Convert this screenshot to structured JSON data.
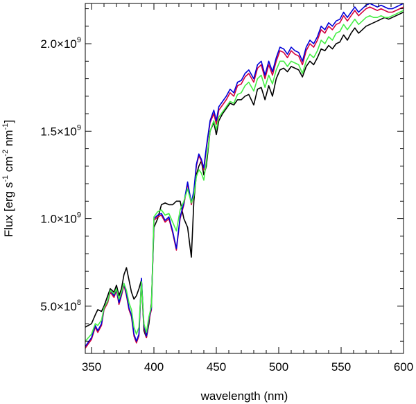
{
  "chart_data": {
    "type": "line",
    "title": "",
    "xlabel": "wavelength (nm)",
    "ylabel": {
      "parts": [
        {
          "t": "Flux [erg s"
        },
        {
          "t": "-1",
          "sup": true
        },
        {
          "t": " cm"
        },
        {
          "t": "-2",
          "sup": true
        },
        {
          "t": " nm"
        },
        {
          "t": "-1",
          "sup": true
        },
        {
          "t": "]"
        }
      ]
    },
    "xlim": [
      345,
      600
    ],
    "ylim": [
      230000000,
      2230000000
    ],
    "xticks": [
      350,
      400,
      450,
      500,
      550,
      600
    ],
    "xtick_labels": [
      "350",
      "400",
      "450",
      "500",
      "550",
      "600"
    ],
    "yticks": [
      500000000,
      1000000000,
      1500000000,
      2000000000
    ],
    "ytick_labels": [
      {
        "mant": "5.0",
        "exp": "8"
      },
      {
        "mant": "1.0",
        "exp": "9"
      },
      {
        "mant": "1.5",
        "exp": "9"
      },
      {
        "mant": "2.0",
        "exp": "9"
      }
    ],
    "x_minor_step": 10,
    "y_minor_step": 100000000,
    "grid": false,
    "legend": false,
    "series": [
      {
        "color": "#000000",
        "x": [
          345,
          350,
          353,
          355,
          358,
          360,
          363,
          365,
          368,
          370,
          372,
          374,
          376,
          378,
          380,
          382,
          384,
          386,
          388,
          390,
          392,
          394,
          396,
          398,
          400,
          403,
          406,
          409,
          412,
          415,
          418,
          421,
          424,
          427,
          430,
          432,
          434,
          436,
          438,
          440,
          442,
          445,
          448,
          450,
          452,
          455,
          458,
          461,
          464,
          467,
          470,
          473,
          476,
          480,
          483,
          486,
          489,
          492,
          495,
          498,
          501,
          504,
          507,
          510,
          513,
          516,
          519,
          522,
          525,
          528,
          531,
          534,
          537,
          540,
          543,
          546,
          549,
          552,
          555,
          558,
          561,
          564,
          567,
          570,
          573,
          576,
          579,
          582,
          585,
          588,
          591,
          594,
          597,
          600
        ],
        "y": [
          380000000,
          400000000,
          450000000,
          480000000,
          470000000,
          500000000,
          560000000,
          600000000,
          580000000,
          620000000,
          560000000,
          600000000,
          680000000,
          720000000,
          650000000,
          580000000,
          540000000,
          560000000,
          600000000,
          650000000,
          360000000,
          320000000,
          400000000,
          520000000,
          950000000,
          1000000000,
          1080000000,
          1090000000,
          1080000000,
          1080000000,
          1100000000,
          1100000000,
          1000000000,
          950000000,
          780000000,
          1100000000,
          1250000000,
          1300000000,
          1330000000,
          1250000000,
          1300000000,
          1500000000,
          1550000000,
          1480000000,
          1560000000,
          1600000000,
          1630000000,
          1660000000,
          1650000000,
          1680000000,
          1680000000,
          1700000000,
          1710000000,
          1650000000,
          1740000000,
          1750000000,
          1680000000,
          1760000000,
          1700000000,
          1800000000,
          1850000000,
          1860000000,
          1840000000,
          1870000000,
          1860000000,
          1850000000,
          1810000000,
          1870000000,
          1900000000,
          1880000000,
          1920000000,
          1970000000,
          1960000000,
          1990000000,
          1970000000,
          2000000000,
          2010000000,
          2050000000,
          2020000000,
          2060000000,
          2090000000,
          2060000000,
          2080000000,
          2100000000,
          2110000000,
          2120000000,
          2130000000,
          2140000000,
          2150000000,
          2140000000,
          2150000000,
          2160000000,
          2170000000,
          2180000000
        ]
      },
      {
        "color": "#d3003d",
        "x": [
          345,
          350,
          353,
          355,
          358,
          360,
          363,
          365,
          368,
          370,
          372,
          374,
          376,
          378,
          380,
          382,
          384,
          386,
          388,
          390,
          392,
          394,
          396,
          398,
          400,
          403,
          406,
          409,
          412,
          415,
          418,
          421,
          424,
          427,
          430,
          432,
          434,
          436,
          438,
          440,
          442,
          445,
          448,
          450,
          452,
          455,
          458,
          461,
          464,
          467,
          470,
          473,
          476,
          480,
          483,
          486,
          489,
          492,
          495,
          498,
          501,
          504,
          507,
          510,
          513,
          516,
          519,
          522,
          525,
          528,
          531,
          534,
          537,
          540,
          543,
          546,
          549,
          552,
          555,
          558,
          561,
          564,
          567,
          570,
          573,
          576,
          579,
          582,
          585,
          588,
          591,
          594,
          597,
          600
        ],
        "y": [
          260000000,
          310000000,
          380000000,
          350000000,
          390000000,
          480000000,
          520000000,
          580000000,
          550000000,
          590000000,
          510000000,
          560000000,
          620000000,
          560000000,
          480000000,
          440000000,
          330000000,
          290000000,
          330000000,
          650000000,
          380000000,
          320000000,
          420000000,
          480000000,
          990000000,
          1010000000,
          1020000000,
          980000000,
          1000000000,
          920000000,
          820000000,
          1000000000,
          1080000000,
          1200000000,
          1080000000,
          1150000000,
          1300000000,
          1360000000,
          1330000000,
          1280000000,
          1400000000,
          1550000000,
          1600000000,
          1540000000,
          1620000000,
          1650000000,
          1680000000,
          1720000000,
          1700000000,
          1760000000,
          1770000000,
          1810000000,
          1830000000,
          1780000000,
          1860000000,
          1880000000,
          1800000000,
          1880000000,
          1820000000,
          1900000000,
          1960000000,
          1950000000,
          1920000000,
          1960000000,
          1940000000,
          1930000000,
          1880000000,
          1960000000,
          2000000000,
          1980000000,
          2020000000,
          2080000000,
          2060000000,
          2100000000,
          2080000000,
          2110000000,
          2120000000,
          2160000000,
          2130000000,
          2160000000,
          2190000000,
          2160000000,
          2180000000,
          2200000000,
          2210000000,
          2200000000,
          2190000000,
          2200000000,
          2190000000,
          2180000000,
          2180000000,
          2190000000,
          2200000000,
          2210000000
        ]
      },
      {
        "color": "#0000d8",
        "x": [
          345,
          350,
          353,
          355,
          358,
          360,
          363,
          365,
          368,
          370,
          372,
          374,
          376,
          378,
          380,
          382,
          384,
          386,
          388,
          390,
          392,
          394,
          396,
          398,
          400,
          403,
          406,
          409,
          412,
          415,
          418,
          421,
          424,
          427,
          430,
          432,
          434,
          436,
          438,
          440,
          442,
          445,
          448,
          450,
          452,
          455,
          458,
          461,
          464,
          467,
          470,
          473,
          476,
          480,
          483,
          486,
          489,
          492,
          495,
          498,
          501,
          504,
          507,
          510,
          513,
          516,
          519,
          522,
          525,
          528,
          531,
          534,
          537,
          540,
          543,
          546,
          549,
          552,
          555,
          558,
          561,
          564,
          567,
          570,
          573,
          576,
          579,
          582,
          585,
          588,
          591,
          594,
          597,
          600
        ],
        "y": [
          270000000,
          320000000,
          390000000,
          360000000,
          400000000,
          490000000,
          530000000,
          590000000,
          560000000,
          600000000,
          520000000,
          570000000,
          630000000,
          570000000,
          490000000,
          450000000,
          340000000,
          300000000,
          340000000,
          660000000,
          390000000,
          330000000,
          430000000,
          490000000,
          1000000000,
          1020000000,
          1030000000,
          990000000,
          1010000000,
          930000000,
          830000000,
          1010000000,
          1090000000,
          1210000000,
          1090000000,
          1160000000,
          1310000000,
          1370000000,
          1340000000,
          1290000000,
          1410000000,
          1560000000,
          1620000000,
          1560000000,
          1640000000,
          1670000000,
          1700000000,
          1740000000,
          1720000000,
          1780000000,
          1790000000,
          1830000000,
          1850000000,
          1800000000,
          1880000000,
          1900000000,
          1820000000,
          1900000000,
          1840000000,
          1920000000,
          1980000000,
          1970000000,
          1940000000,
          1980000000,
          1960000000,
          1950000000,
          1900000000,
          1980000000,
          2020000000,
          2000000000,
          2040000000,
          2100000000,
          2080000000,
          2120000000,
          2100000000,
          2130000000,
          2140000000,
          2180000000,
          2150000000,
          2180000000,
          2210000000,
          2180000000,
          2200000000,
          2220000000,
          2230000000,
          2220000000,
          2210000000,
          2220000000,
          2210000000,
          2200000000,
          2200000000,
          2210000000,
          2220000000,
          2230000000
        ]
      },
      {
        "color": "#44ee44",
        "x": [
          345,
          350,
          353,
          355,
          358,
          360,
          363,
          365,
          368,
          370,
          372,
          374,
          376,
          378,
          380,
          382,
          384,
          386,
          388,
          390,
          392,
          394,
          396,
          398,
          400,
          403,
          406,
          409,
          412,
          415,
          418,
          421,
          424,
          427,
          430,
          432,
          434,
          436,
          438,
          440,
          442,
          445,
          448,
          450,
          452,
          455,
          458,
          461,
          464,
          467,
          470,
          473,
          476,
          480,
          483,
          486,
          489,
          492,
          495,
          498,
          501,
          504,
          507,
          510,
          513,
          516,
          519,
          522,
          525,
          528,
          531,
          534,
          537,
          540,
          543,
          546,
          549,
          552,
          555,
          558,
          561,
          564,
          567,
          570,
          573,
          576,
          579,
          582,
          585,
          588,
          591,
          594,
          597,
          600
        ],
        "y": [
          300000000,
          340000000,
          400000000,
          390000000,
          420000000,
          490000000,
          530000000,
          590000000,
          570000000,
          600000000,
          540000000,
          580000000,
          630000000,
          590000000,
          520000000,
          480000000,
          380000000,
          340000000,
          380000000,
          640000000,
          400000000,
          350000000,
          440000000,
          500000000,
          1010000000,
          1040000000,
          1050000000,
          1020000000,
          1030000000,
          980000000,
          930000000,
          1050000000,
          1100000000,
          1170000000,
          1090000000,
          1130000000,
          1240000000,
          1280000000,
          1260000000,
          1220000000,
          1330000000,
          1500000000,
          1560000000,
          1510000000,
          1580000000,
          1610000000,
          1640000000,
          1670000000,
          1660000000,
          1710000000,
          1720000000,
          1760000000,
          1780000000,
          1730000000,
          1800000000,
          1820000000,
          1750000000,
          1820000000,
          1770000000,
          1850000000,
          1900000000,
          1900000000,
          1870000000,
          1900000000,
          1890000000,
          1880000000,
          1830000000,
          1900000000,
          1940000000,
          1920000000,
          1960000000,
          2020000000,
          2000000000,
          2040000000,
          2020000000,
          2060000000,
          2070000000,
          2110000000,
          2080000000,
          2110000000,
          2140000000,
          2110000000,
          2130000000,
          2150000000,
          2160000000,
          2150000000,
          2150000000,
          2160000000,
          2150000000,
          2150000000,
          2160000000,
          2170000000,
          2180000000,
          2190000000
        ]
      }
    ]
  }
}
